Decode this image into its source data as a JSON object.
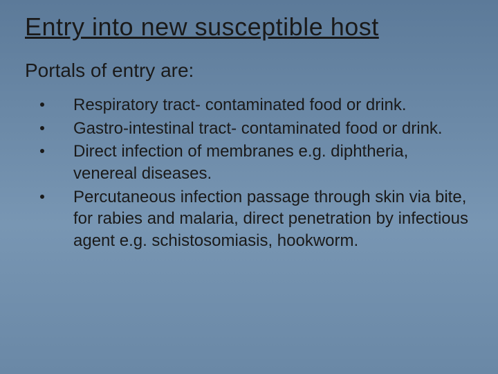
{
  "slide": {
    "title": "Entry into new susceptible host",
    "subtitle": "Portals of entry are:",
    "bullets": [
      "Respiratory tract- contaminated food or drink.",
      "Gastro-intestinal tract- contaminated food or drink.",
      "Direct infection of membranes e.g. diphtheria, venereal diseases.",
      "Percutaneous infection passage through skin via bite, for rabies and malaria, direct penetration by infectious agent e.g. schistosomiasis, hookworm."
    ],
    "title_fontsize": 36,
    "subtitle_fontsize": 28,
    "body_fontsize": 24,
    "background_gradient": [
      "#5c7a99",
      "#6a88a6",
      "#7896b3",
      "#6a88a6"
    ],
    "text_color": "#1a1a1a",
    "accent_color": "#2b5aa8",
    "font_family": "Comic Sans MS",
    "bullet_marker": "dot"
  }
}
